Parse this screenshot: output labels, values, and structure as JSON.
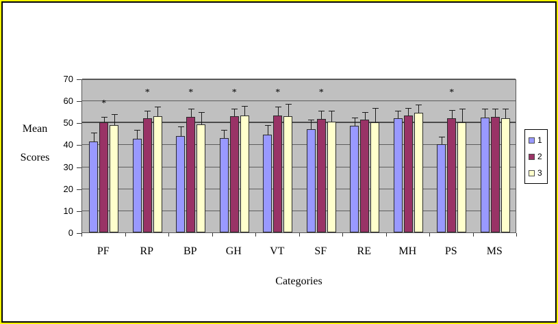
{
  "chart_data": {
    "type": "bar",
    "title": "",
    "xlabel": "Categories",
    "ylabel": "Mean Scores",
    "ylabel_lines": [
      "Mean",
      "Scores"
    ],
    "ylim": [
      0,
      70
    ],
    "ytick_step": 10,
    "yticks": [
      0,
      10,
      20,
      30,
      40,
      50,
      60,
      70
    ],
    "emphasized_gridline": 50,
    "grid": true,
    "legend_position": "right",
    "plot_background": "#c0c0c0",
    "categories": [
      "PF",
      "RP",
      "BP",
      "GH",
      "VT",
      "SF",
      "RE",
      "MH",
      "PS",
      "MS"
    ],
    "series": [
      {
        "name": "1",
        "color": "#9999ff",
        "values": [
          41.5,
          42.5,
          44,
          43,
          44.5,
          47,
          48.5,
          52,
          40,
          52.3
        ],
        "error_upper": [
          45,
          46.5,
          48,
          46.5,
          48.5,
          51,
          52,
          55,
          43.3,
          56
        ]
      },
      {
        "name": "2",
        "color": "#993366",
        "values": [
          50,
          52,
          52.5,
          53,
          53.3,
          51.8,
          51.2,
          53.2,
          52,
          52.5
        ],
        "error_upper": [
          52.3,
          55,
          56,
          56,
          57,
          55,
          54.5,
          56.4,
          55.5,
          56
        ]
      },
      {
        "name": "3",
        "color": "#ffffcc",
        "values": [
          49,
          53,
          49.2,
          53.2,
          53,
          50.4,
          50.2,
          54.3,
          50,
          52
        ],
        "error_upper": [
          53.5,
          57,
          54.5,
          57.3,
          58.2,
          55,
          56.4,
          57.9,
          56,
          56
        ]
      }
    ],
    "significance_asterisks": {
      "symbol": "*",
      "y_values": [
        57,
        62,
        62,
        62,
        62,
        62,
        null,
        null,
        62,
        null
      ]
    }
  },
  "page": {
    "border_outer_color": "#ffff00",
    "border_inner_color": "#000000",
    "background": "#ffffff"
  }
}
